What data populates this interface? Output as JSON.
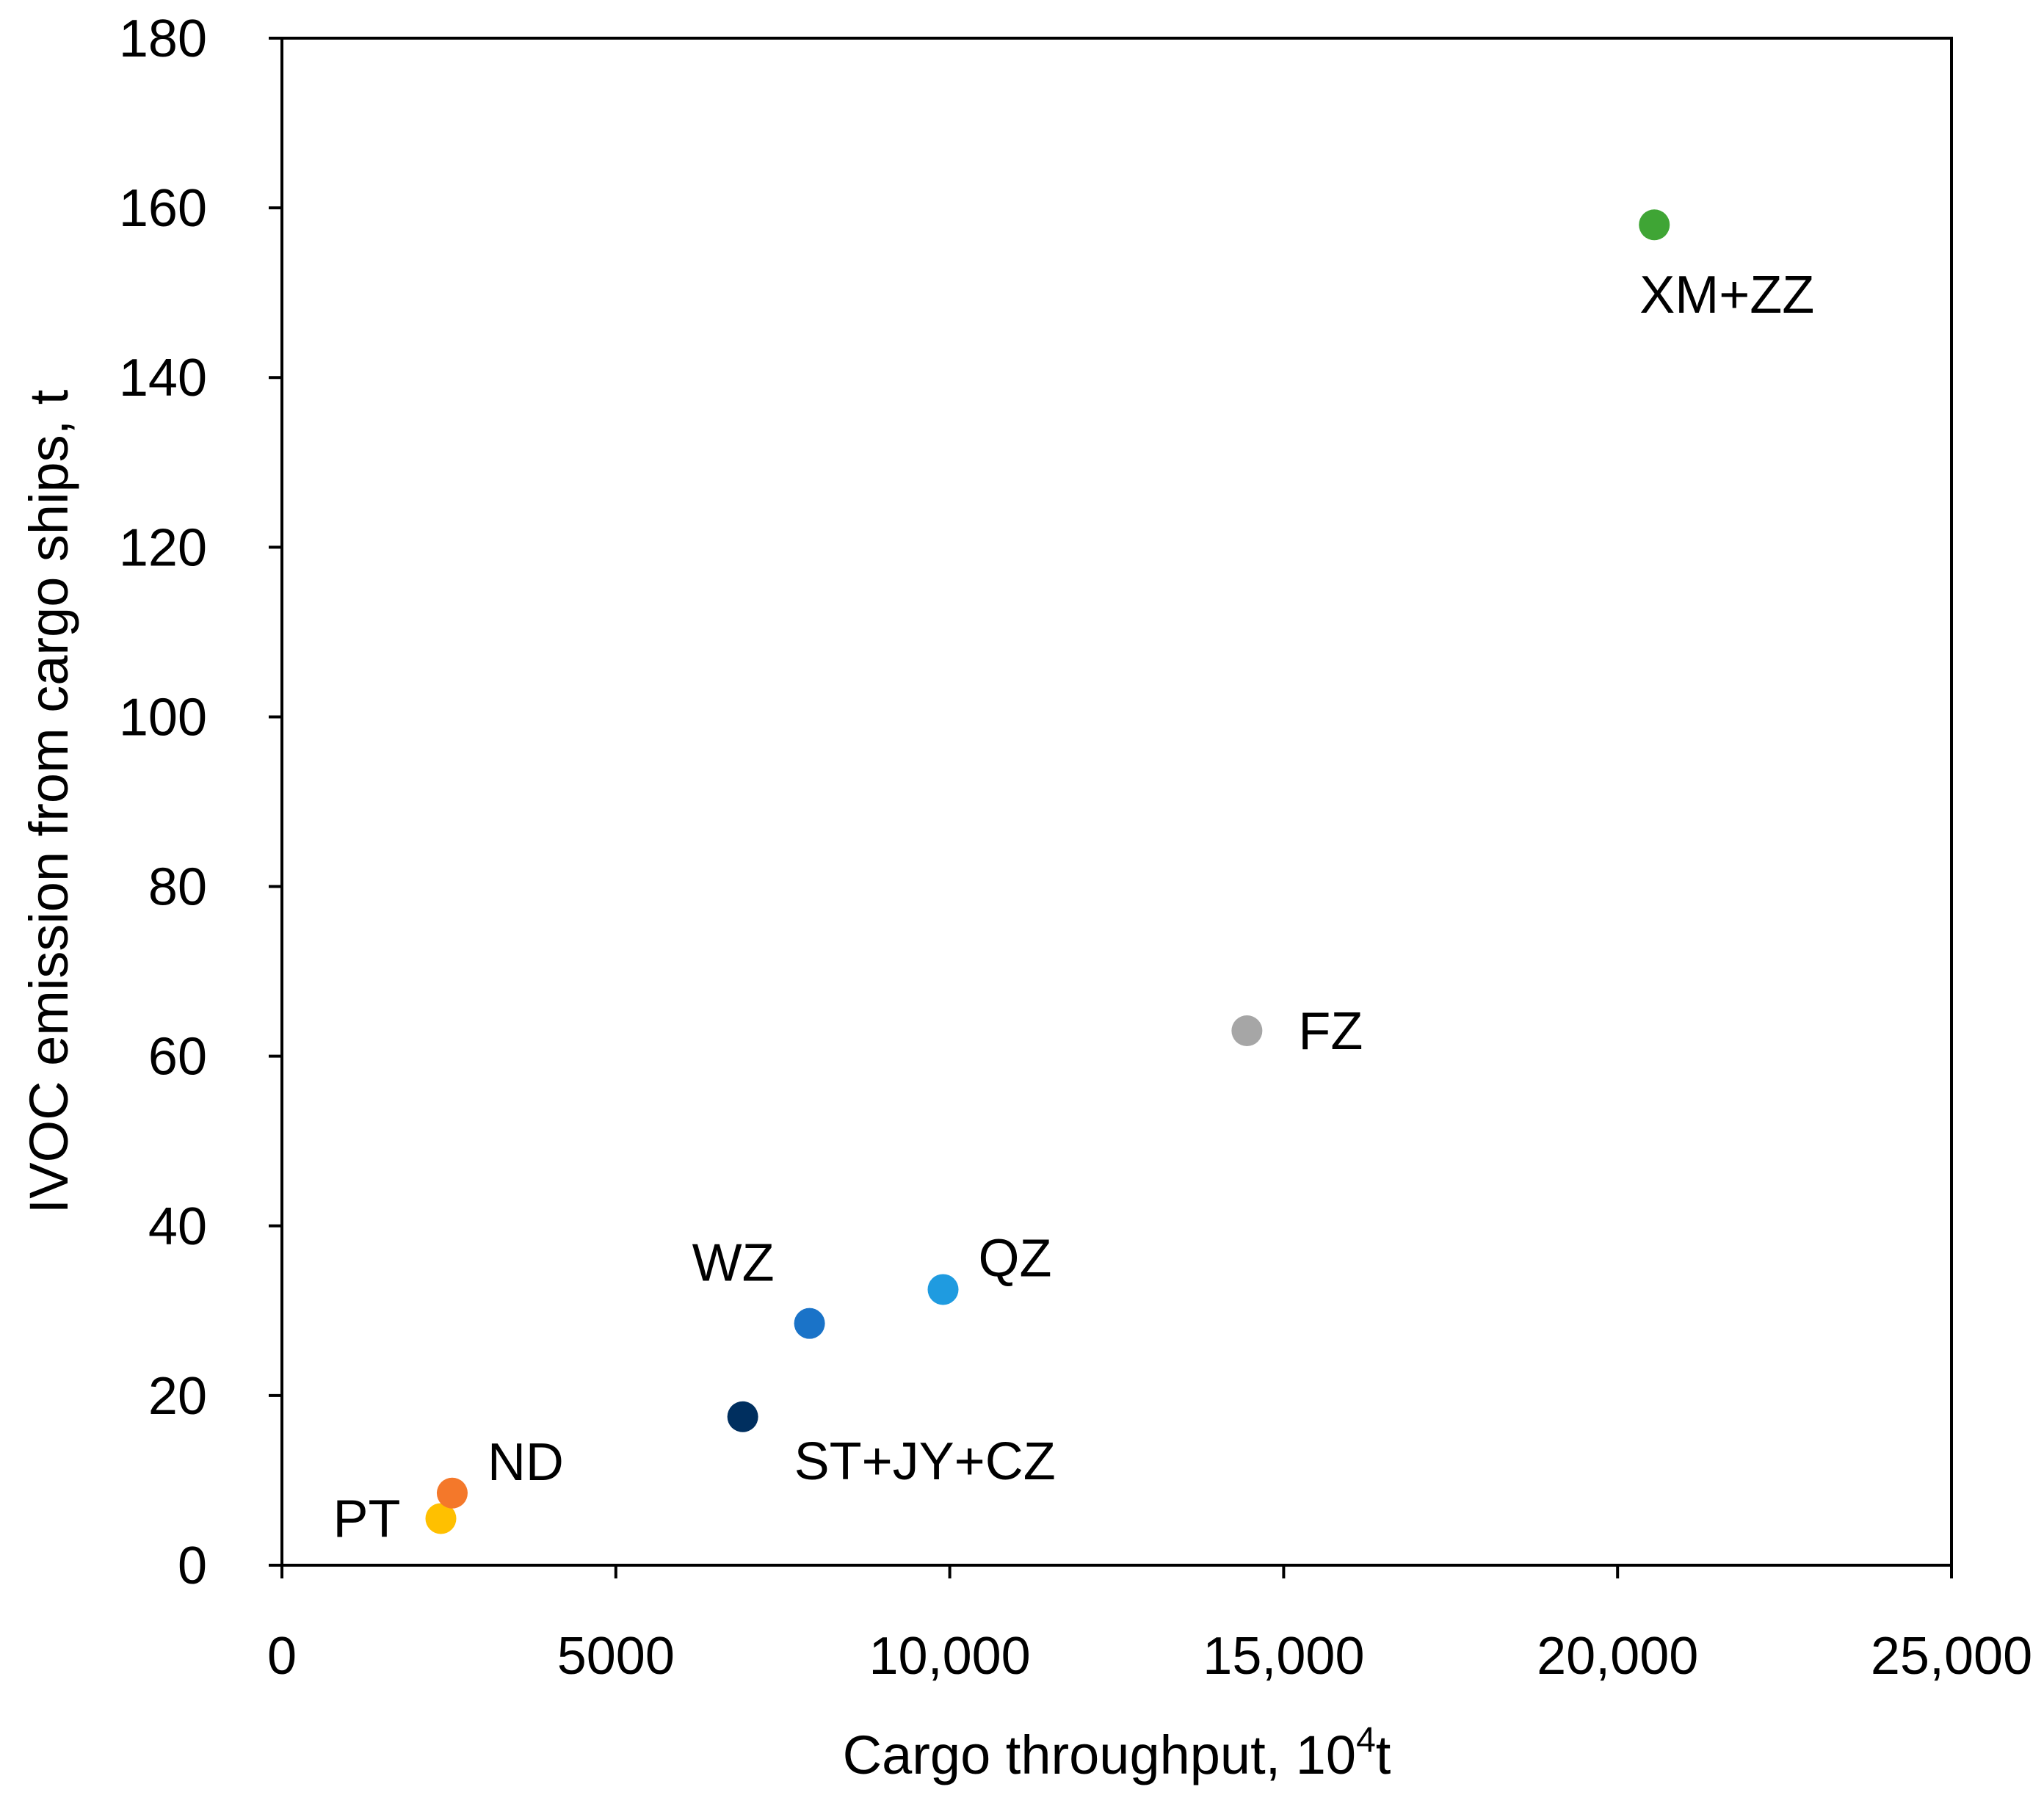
{
  "chart_data": {
    "type": "scatter",
    "title": "",
    "xlabel": "Cargo throughput, 10",
    "xlabel_sup": "4",
    "xlabel_suffix": "t",
    "ylabel": "IVOC emission from cargo ships, t",
    "xlim": [
      0,
      25000
    ],
    "ylim": [
      0,
      180
    ],
    "x_ticks": [
      0,
      5000,
      10000,
      15000,
      20000,
      25000
    ],
    "x_tick_labels": [
      "0",
      "5000",
      "10,000",
      "15,000",
      "20,000",
      "25,000"
    ],
    "y_ticks": [
      0,
      20,
      40,
      60,
      80,
      100,
      120,
      140,
      160,
      180
    ],
    "y_tick_labels": [
      "0",
      "20",
      "40",
      "60",
      "80",
      "100",
      "120",
      "140",
      "160",
      "180"
    ],
    "grid": false,
    "points": [
      {
        "label": "PT",
        "x": 2380,
        "y": 5.5,
        "color": "#ffc000",
        "label_pos": "left"
      },
      {
        "label": "ND",
        "x": 2550,
        "y": 8.5,
        "color": "#f4782a",
        "label_pos": "upper-right"
      },
      {
        "label": "ST+JY+CZ",
        "x": 6900,
        "y": 17.5,
        "color": "#002f5f",
        "label_pos": "lower-right"
      },
      {
        "label": "WZ",
        "x": 7900,
        "y": 28.5,
        "color": "#1a73c8",
        "label_pos": "upper-left"
      },
      {
        "label": "QZ",
        "x": 9900,
        "y": 32.5,
        "color": "#1f9be0",
        "label_pos": "upper-right"
      },
      {
        "label": "FZ",
        "x": 14450,
        "y": 63,
        "color": "#a6a6a6",
        "label_pos": "right"
      },
      {
        "label": "XM+ZZ",
        "x": 20550,
        "y": 158,
        "color": "#3fa535",
        "label_pos": "below"
      }
    ]
  }
}
